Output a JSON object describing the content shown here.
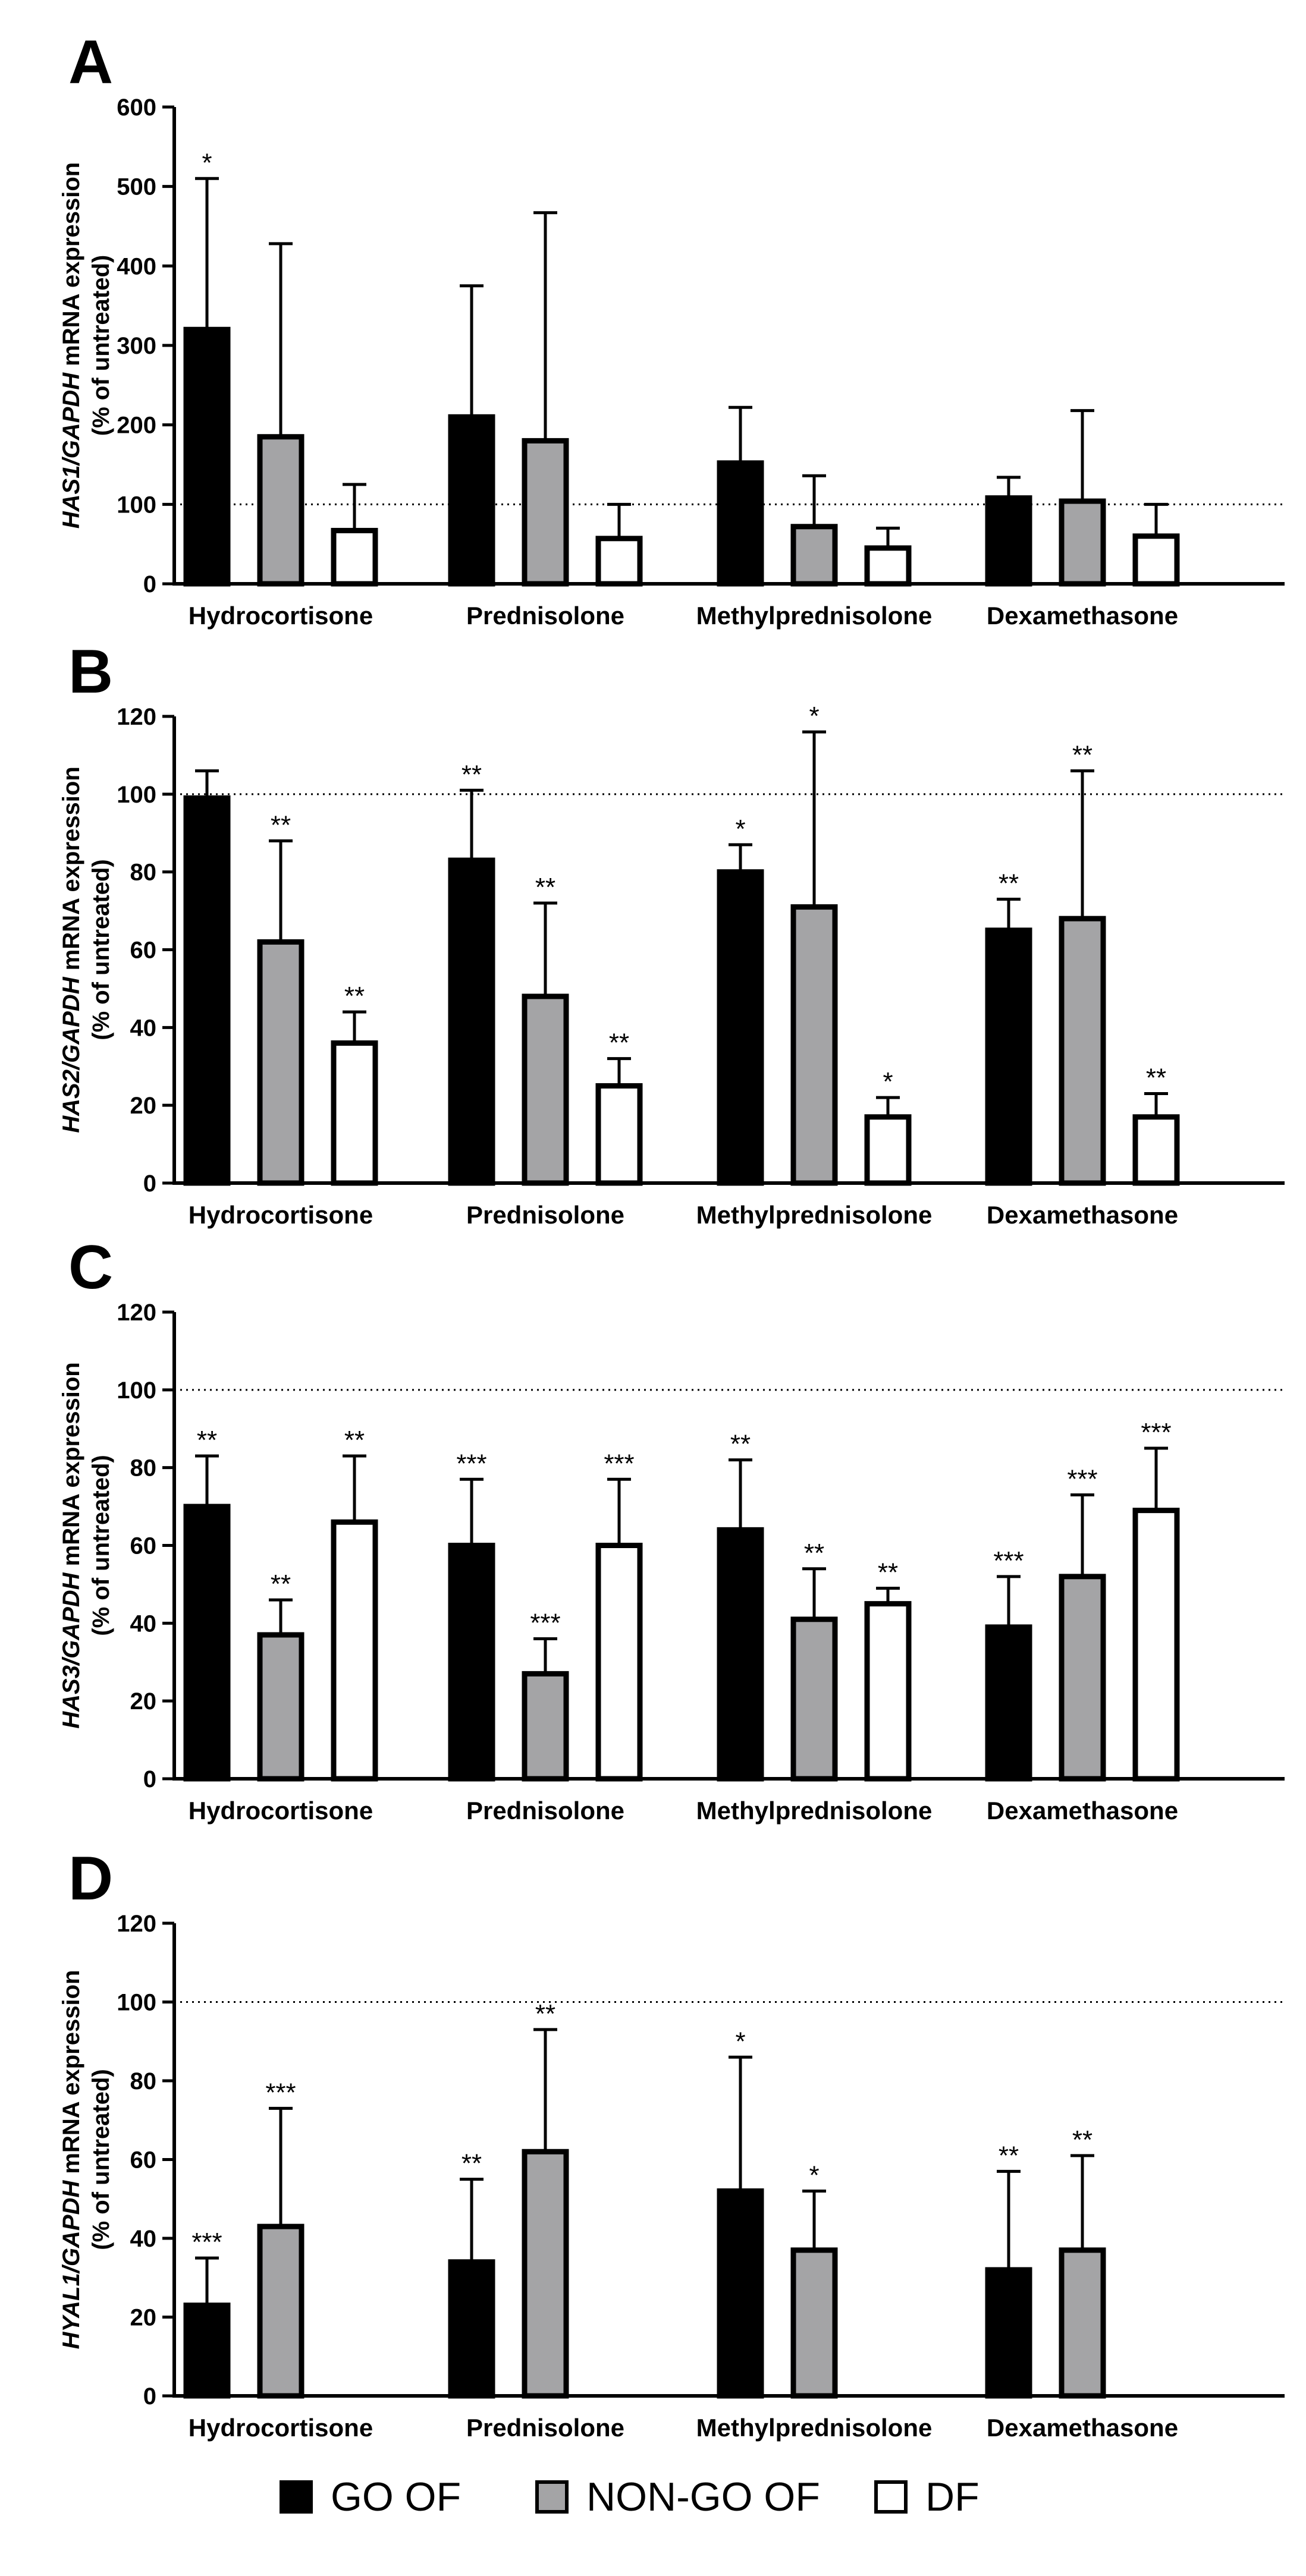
{
  "colors": {
    "go_of": "#000000",
    "non_go_of": "#a4a4a6",
    "df": "#ffffff",
    "axis": "#000000"
  },
  "legend": {
    "items": [
      {
        "label": "GO OF",
        "color": "#000000"
      },
      {
        "label": "NON-GO OF",
        "color": "#a4a4a6"
      },
      {
        "label": "DF",
        "color": "#ffffff"
      }
    ]
  },
  "chart_data": [
    {
      "panel_label": "A",
      "type": "bar",
      "ylabel_gene": "HAS1/GAPDH",
      "ylabel_suffix": " mRNA expression",
      "ylabel_line2": "(% of untreated)",
      "ylim": [
        0,
        600
      ],
      "yticks": [
        0,
        100,
        200,
        300,
        400,
        500,
        600
      ],
      "reference_line": 100,
      "categories": [
        "Hydrocortisone",
        "Prednisolone",
        "Methylprednisolone",
        "Dexamethasone"
      ],
      "series": [
        {
          "name": "GO OF",
          "values": [
            320,
            210,
            152,
            108
          ],
          "errors": [
            190,
            165,
            70,
            26
          ],
          "sig": [
            "*",
            "",
            "",
            ""
          ]
        },
        {
          "name": "NON-GO OF",
          "values": [
            185,
            180,
            72,
            104
          ],
          "errors": [
            243,
            287,
            64,
            114
          ],
          "sig": [
            "",
            "",
            "",
            ""
          ]
        },
        {
          "name": "DF",
          "values": [
            67,
            57,
            45,
            60
          ],
          "errors": [
            58,
            43,
            25,
            40
          ],
          "sig": [
            "",
            "",
            "",
            ""
          ]
        }
      ]
    },
    {
      "panel_label": "B",
      "type": "bar",
      "ylabel_gene": "HAS2/GAPDH",
      "ylabel_suffix": " mRNA expression",
      "ylabel_line2": "(% of untreated)",
      "ylim": [
        0,
        120
      ],
      "yticks": [
        0,
        20,
        40,
        60,
        80,
        100,
        120
      ],
      "reference_line": 100,
      "categories": [
        "Hydrocortisone",
        "Prednisolone",
        "Methylprednisolone",
        "Dexamethasone"
      ],
      "series": [
        {
          "name": "GO OF",
          "values": [
            99,
            83,
            80,
            65
          ],
          "errors": [
            7,
            18,
            7,
            8
          ],
          "sig": [
            "",
            "**",
            "*",
            "**"
          ]
        },
        {
          "name": "NON-GO OF",
          "values": [
            62,
            48,
            71,
            68
          ],
          "errors": [
            26,
            24,
            45,
            38
          ],
          "sig": [
            "**",
            "**",
            "*",
            "**"
          ]
        },
        {
          "name": "DF",
          "values": [
            36,
            25,
            17,
            17
          ],
          "errors": [
            8,
            7,
            5,
            6
          ],
          "sig": [
            "**",
            "**",
            "*",
            "**"
          ]
        }
      ]
    },
    {
      "panel_label": "C",
      "type": "bar",
      "ylabel_gene": "HAS3/GAPDH",
      "ylabel_suffix": " mRNA expression",
      "ylabel_line2": "(% of untreated)",
      "ylim": [
        0,
        120
      ],
      "yticks": [
        0,
        20,
        40,
        60,
        80,
        100,
        120
      ],
      "reference_line": 100,
      "categories": [
        "Hydrocortisone",
        "Prednisolone",
        "Methylprednisolone",
        "Dexamethasone"
      ],
      "series": [
        {
          "name": "GO OF",
          "values": [
            70,
            60,
            64,
            39
          ],
          "errors": [
            13,
            17,
            18,
            13
          ],
          "sig": [
            "**",
            "***",
            "**",
            "***"
          ]
        },
        {
          "name": "NON-GO OF",
          "values": [
            37,
            27,
            41,
            52
          ],
          "errors": [
            9,
            9,
            13,
            21
          ],
          "sig": [
            "**",
            "***",
            "**",
            "***"
          ]
        },
        {
          "name": "DF",
          "values": [
            66,
            60,
            45,
            69
          ],
          "errors": [
            17,
            17,
            4,
            16
          ],
          "sig": [
            "**",
            "***",
            "**",
            "***"
          ]
        }
      ]
    },
    {
      "panel_label": "D",
      "type": "bar",
      "ylabel_gene": "HYAL1/GAPDH",
      "ylabel_suffix": " mRNA expression",
      "ylabel_line2": "(% of untreated)",
      "ylim": [
        0,
        120
      ],
      "yticks": [
        0,
        20,
        40,
        60,
        80,
        100,
        120
      ],
      "reference_line": 100,
      "categories": [
        "Hydrocortisone",
        "Prednisolone",
        "Methylprednisolone",
        "Dexamethasone"
      ],
      "series": [
        {
          "name": "GO OF",
          "values": [
            23,
            34,
            52,
            32
          ],
          "errors": [
            12,
            21,
            34,
            25
          ],
          "sig": [
            "***",
            "**",
            "*",
            "**"
          ]
        },
        {
          "name": "NON-GO OF",
          "values": [
            43,
            62,
            37,
            37
          ],
          "errors": [
            30,
            31,
            15,
            24
          ],
          "sig": [
            "***",
            "**",
            "*",
            "**"
          ]
        }
      ]
    }
  ]
}
